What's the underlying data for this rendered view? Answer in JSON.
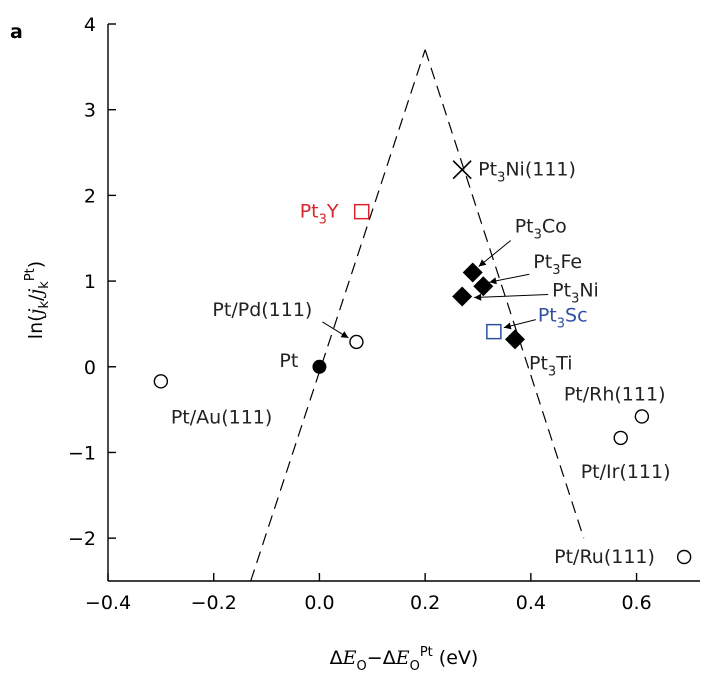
{
  "chart_data": {
    "type": "scatter",
    "panel_label": "a",
    "xlim": [
      -0.4,
      0.72
    ],
    "ylim": [
      -2.5,
      4
    ],
    "x_ticks": [
      -0.4,
      -0.2,
      0.0,
      0.2,
      0.4,
      0.6
    ],
    "x_tick_labels": [
      "−0.4",
      "−0.2",
      "0.0",
      "0.2",
      "0.4",
      "0.6"
    ],
    "y_ticks": [
      -2,
      -1,
      0,
      1,
      2,
      3,
      4
    ],
    "y_tick_labels": [
      "−2",
      "−1",
      "0",
      "1",
      "2",
      "3",
      "4"
    ],
    "xlabel": "ΔE_O−ΔE_O^Pt (eV)",
    "ylabel": "ln(j_k/j_k^Pt)",
    "grid": false,
    "series": [
      {
        "marker": "open-circle",
        "color": "#000000",
        "points": [
          {
            "x": -0.3,
            "y": -0.17,
            "label": "Pt/Au(111)"
          },
          {
            "x": 0.07,
            "y": 0.29,
            "label": "Pt/Pd(111)"
          },
          {
            "x": 0.61,
            "y": -0.58,
            "label": "Pt/Rh(111)"
          },
          {
            "x": 0.57,
            "y": -0.83,
            "label": "Pt/Ir(111)"
          },
          {
            "x": 0.69,
            "y": -2.22,
            "label": "Pt/Ru(111)"
          }
        ]
      },
      {
        "marker": "filled-circle",
        "color": "#000000",
        "points": [
          {
            "x": 0.0,
            "y": 0.0,
            "label": "Pt"
          }
        ]
      },
      {
        "marker": "filled-diamond",
        "color": "#000000",
        "points": [
          {
            "x": 0.29,
            "y": 1.1,
            "label": "Pt3Co"
          },
          {
            "x": 0.31,
            "y": 0.94,
            "label": "Pt3Fe"
          },
          {
            "x": 0.27,
            "y": 0.82,
            "label": "Pt3Ni"
          },
          {
            "x": 0.37,
            "y": 0.32,
            "label": "Pt3Ti"
          }
        ]
      },
      {
        "marker": "cross",
        "color": "#000000",
        "points": [
          {
            "x": 0.27,
            "y": 2.3,
            "label": "Pt3Ni(111)"
          }
        ]
      },
      {
        "marker": "open-square",
        "color": "#d9262c",
        "points": [
          {
            "x": 0.08,
            "y": 1.81,
            "label": "Pt3Y"
          }
        ]
      },
      {
        "marker": "open-square",
        "color": "#2f4fa2",
        "points": [
          {
            "x": 0.33,
            "y": 0.41,
            "label": "Pt3Sc"
          }
        ]
      }
    ],
    "volcano_lines": [
      {
        "x": [
          -0.13,
          0.2
        ],
        "y": [
          -2.5,
          3.7
        ]
      },
      {
        "x": [
          0.2,
          0.5
        ],
        "y": [
          3.7,
          -2.0
        ]
      }
    ]
  }
}
